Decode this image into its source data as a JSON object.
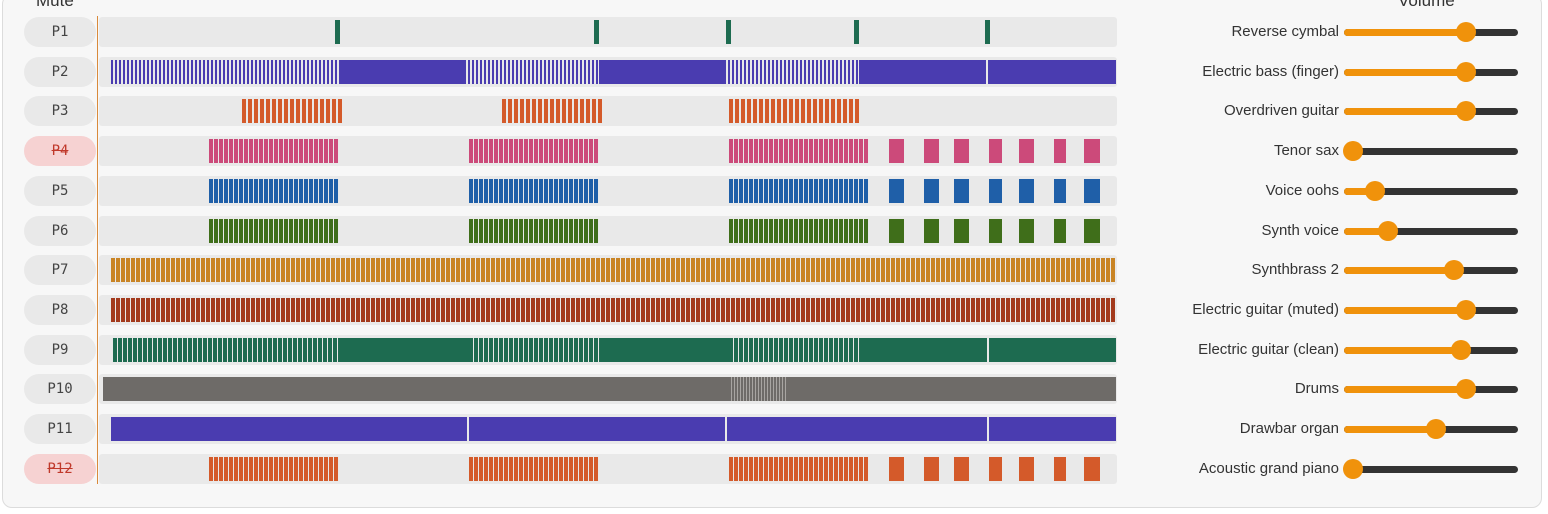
{
  "header": {
    "mute_label": "Mute",
    "volume_label": "Volume"
  },
  "colors": {
    "slider_fill": "#f0920b",
    "slider_rail": "#333333",
    "muted_bg": "#f6d2d2",
    "muted_text": "#c0392b"
  },
  "tracks": [
    {
      "id": "P1",
      "muted": false,
      "instrument": "Reverse cymbal",
      "volume": 0.7,
      "color": "#1d6b50",
      "pattern": "cymbal"
    },
    {
      "id": "P2",
      "muted": false,
      "instrument": "Electric bass (finger)",
      "volume": 0.7,
      "color": "#4a3cb0",
      "pattern": "bass"
    },
    {
      "id": "P3",
      "muted": false,
      "instrument": "Overdriven guitar",
      "volume": 0.7,
      "color": "#d45a2a",
      "pattern": "guitar3"
    },
    {
      "id": "P4",
      "muted": true,
      "instrument": "Tenor sax",
      "volume": 0.05,
      "color": "#cc4a7a",
      "pattern": "riff"
    },
    {
      "id": "P5",
      "muted": false,
      "instrument": "Voice oohs",
      "volume": 0.18,
      "color": "#1f5fa8",
      "pattern": "riff"
    },
    {
      "id": "P6",
      "muted": false,
      "instrument": "Synth voice",
      "volume": 0.25,
      "color": "#3f6e1a",
      "pattern": "riff"
    },
    {
      "id": "P7",
      "muted": false,
      "instrument": "Synthbrass 2",
      "volume": 0.63,
      "color": "#c98424",
      "pattern": "dense"
    },
    {
      "id": "P8",
      "muted": false,
      "instrument": "Electric guitar (muted)",
      "volume": 0.7,
      "color": "#a33a1c",
      "pattern": "dense"
    },
    {
      "id": "P9",
      "muted": false,
      "instrument": "Electric guitar (clean)",
      "volume": 0.67,
      "color": "#1d6b50",
      "pattern": "clean"
    },
    {
      "id": "P10",
      "muted": false,
      "instrument": "Drums",
      "volume": 0.7,
      "color": "#6e6b68",
      "pattern": "drums"
    },
    {
      "id": "P11",
      "muted": false,
      "instrument": "Drawbar organ",
      "volume": 0.53,
      "color": "#4a3cb0",
      "pattern": "organ"
    },
    {
      "id": "P12",
      "muted": true,
      "instrument": "Acoustic grand piano",
      "volume": 0.05,
      "color": "#d45a2a",
      "pattern": "riff"
    }
  ]
}
